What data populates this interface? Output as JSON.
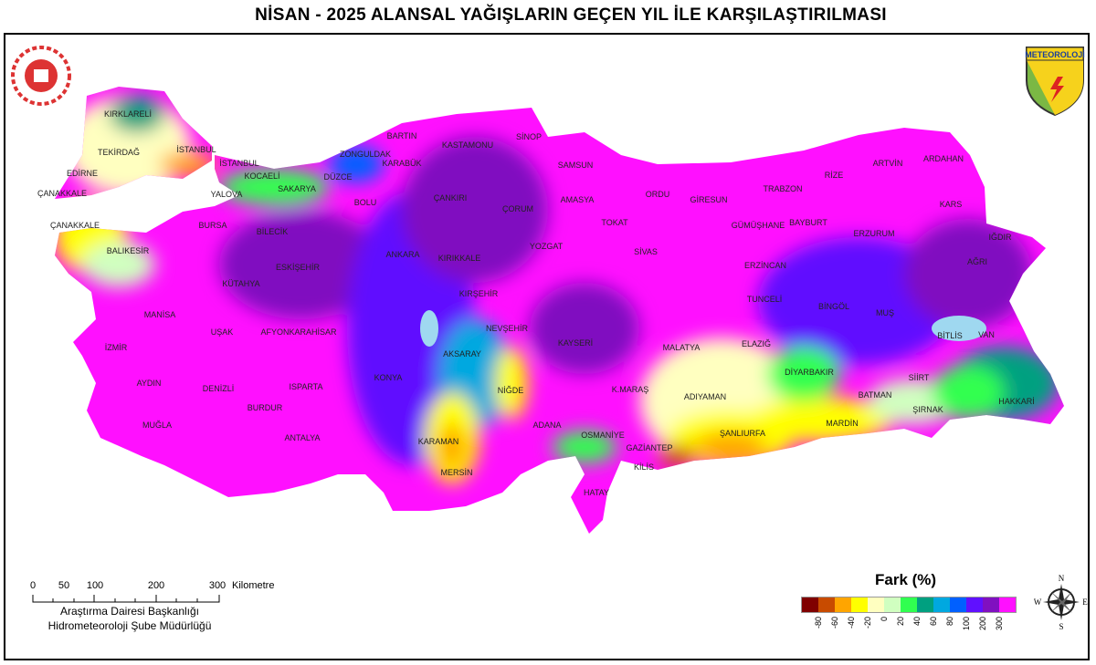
{
  "title": "NİSAN - 2025 ALANSAL YAĞIŞLARIN GEÇEN YIL İLE KARŞILAŞTIRILMASI",
  "logos": {
    "right_lettering": "METEOROLOJİ",
    "left": "emblem",
    "right": "shield"
  },
  "legend": {
    "title": "Fark (%)",
    "colors": [
      "#800000",
      "#c84b00",
      "#ffa500",
      "#ffff00",
      "#ffffc0",
      "#d0ffc0",
      "#30ff50",
      "#00a080",
      "#00a8e0",
      "#0060ff",
      "#6010ff",
      "#8010c0",
      "#ff10ff"
    ],
    "labels": [
      "-80",
      "-60",
      "-40",
      "-20",
      "0",
      "20",
      "40",
      "60",
      "80",
      "100",
      "200",
      "300"
    ]
  },
  "scale": {
    "ticks": [
      "0",
      "50",
      "100",
      "200",
      "300"
    ],
    "unit": "Kilometre"
  },
  "credits": {
    "line1": "Araştırma Dairesi Başkanlığı",
    "line2": "Hidrometeoroloji Şube Müdürlüğü"
  },
  "compass": {
    "n": "N",
    "s": "S",
    "e": "E",
    "w": "W"
  },
  "cities": [
    "KIRKLARELİ",
    "TEKİRDAĞ",
    "İSTANBUL",
    "EDİRNE",
    "ÇANAKKALE",
    "ÇANAKKALE",
    "İSTANBUL",
    "KOCAELİ",
    "YALOVA",
    "SAKARYA",
    "BURSA",
    "DÜZCE",
    "ZONGULDAK",
    "BARTIN",
    "KARABÜK",
    "KASTAMONU",
    "SİNOP",
    "SAMSUN",
    "BOLU",
    "ÇANKIRI",
    "ÇORUM",
    "AMASYA",
    "ORDU",
    "GİRESUN",
    "TRABZON",
    "RİZE",
    "ARTVİN",
    "ARDAHAN",
    "KARS",
    "TOKAT",
    "GÜMÜŞHANE",
    "BAYBURT",
    "ERZURUM",
    "IĞDIR",
    "AĞRI",
    "BİLECİK",
    "BALIKESİR",
    "ESKİŞEHİR",
    "ANKARA",
    "KIRIKKALE",
    "YOZGAT",
    "SİVAS",
    "ERZİNCAN",
    "KÜTAHYA",
    "KIRŞEHİR",
    "TUNCELİ",
    "BİNGÖL",
    "MUŞ",
    "MANİSA",
    "NEVŞEHİR",
    "UŞAK",
    "AFYONKARAHİSAR",
    "KAYSERİ",
    "MALATYA",
    "ELAZIĞ",
    "BİTLİS",
    "VAN",
    "İZMİR",
    "AKSARAY",
    "DİYARBAKIR",
    "SİİRT",
    "KONYA",
    "AYDIN",
    "DENİZLİ",
    "ISPARTA",
    "NİĞDE",
    "K.MARAŞ",
    "ADIYAMAN",
    "BATMAN",
    "HAKKARİ",
    "ŞIRNAK",
    "BURDUR",
    "MUĞLA",
    "ADANA",
    "OSMANİYE",
    "MARDİN",
    "ŞANLIURFA",
    "ANTALYA",
    "KARAMAN",
    "GAZİANTEP",
    "MERSİN",
    "KİLİS",
    "HATAY"
  ]
}
